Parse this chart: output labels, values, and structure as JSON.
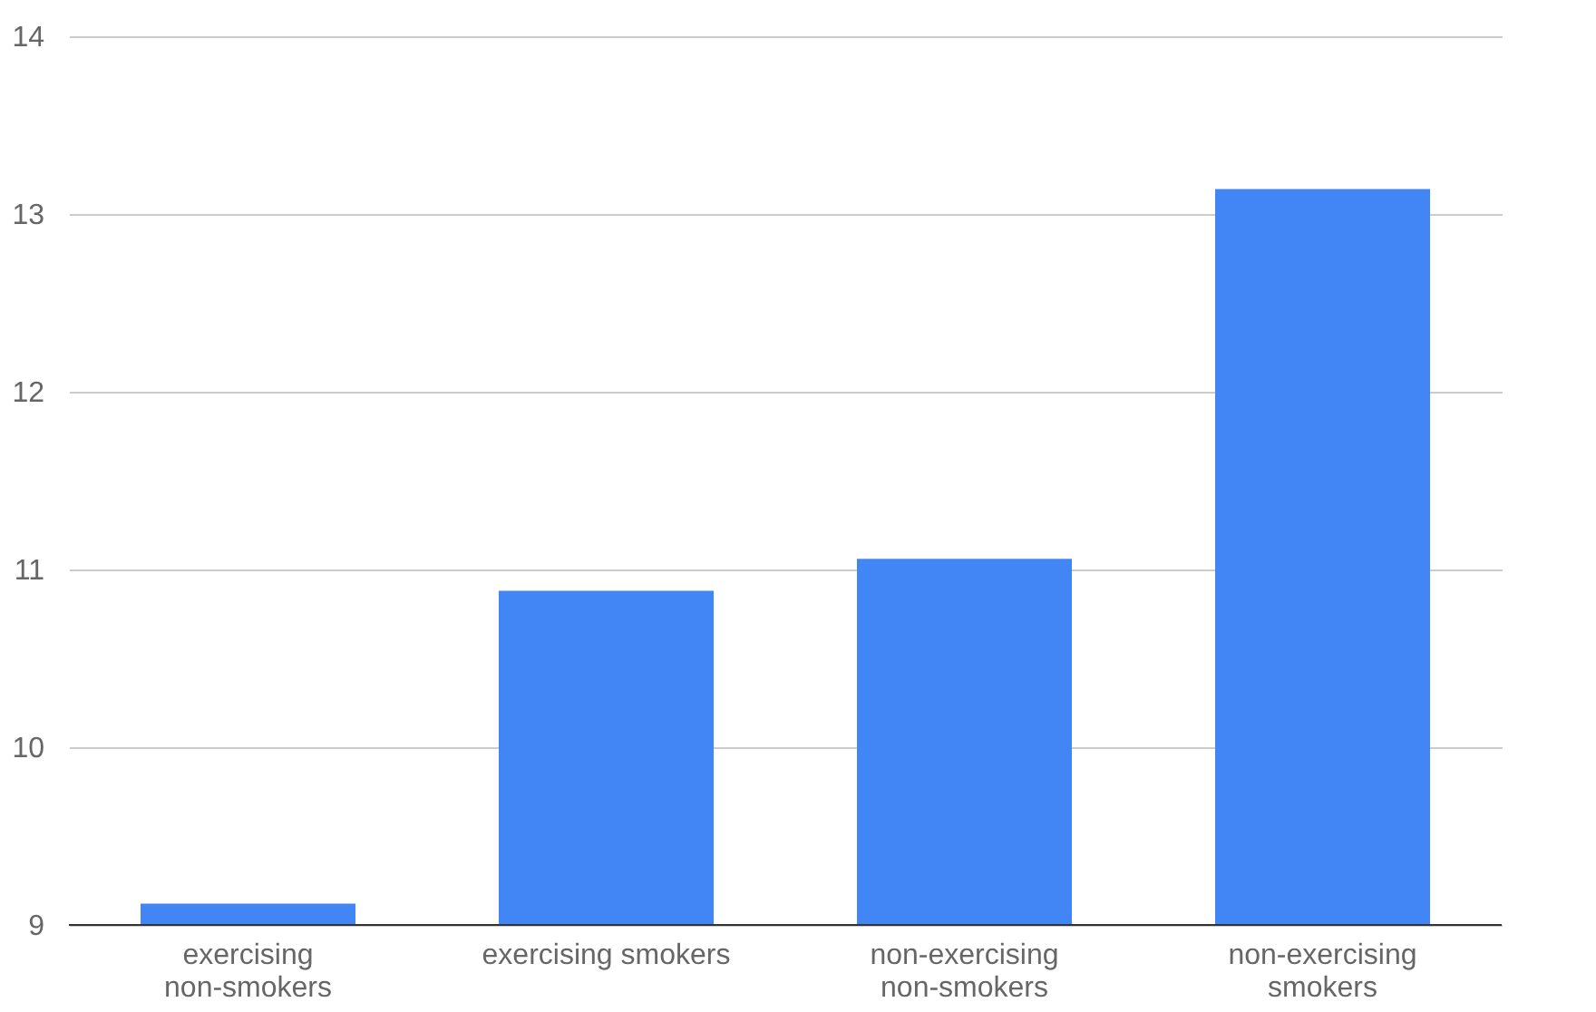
{
  "chart_data": {
    "type": "bar",
    "categories": [
      "exercising non-smokers",
      "exercising smokers",
      "non-exercising non-smokers",
      "non-exercising smokers"
    ],
    "values": [
      9.12,
      10.88,
      11.06,
      13.14
    ],
    "color": "#4285f4",
    "ylim": [
      9,
      14
    ],
    "yticks": [
      9,
      10,
      11,
      12,
      13,
      14
    ],
    "grid": "y"
  }
}
